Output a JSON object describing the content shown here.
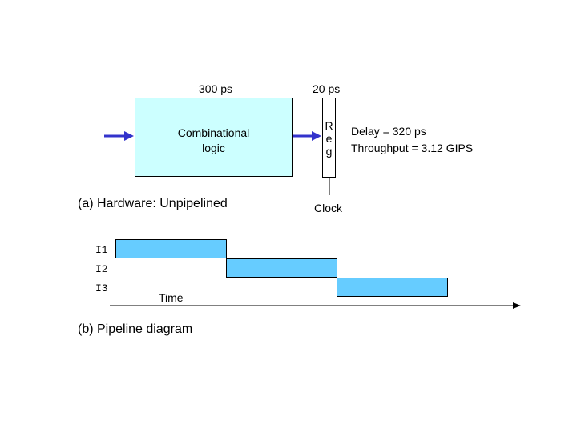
{
  "hardware": {
    "comb_delay_label": "300 ps",
    "reg_delay_label": "20 ps",
    "comb_block": {
      "line1": "Combinational",
      "line2": "logic",
      "fill": "#ccffff"
    },
    "reg_block": {
      "letters": [
        "R",
        "e",
        "g"
      ]
    },
    "clock_label": "Clock",
    "metrics": {
      "delay": "Delay = 320 ps",
      "throughput": "Throughput = 3.12 GIPS"
    },
    "arrow_color": "#3333cc",
    "caption": "(a) Hardware: Unpipelined"
  },
  "pipeline": {
    "instructions": [
      "I1",
      "I2",
      "I3"
    ],
    "time_label": "Time",
    "bar_color": "#66ccff",
    "caption": "(b) Pipeline diagram"
  }
}
